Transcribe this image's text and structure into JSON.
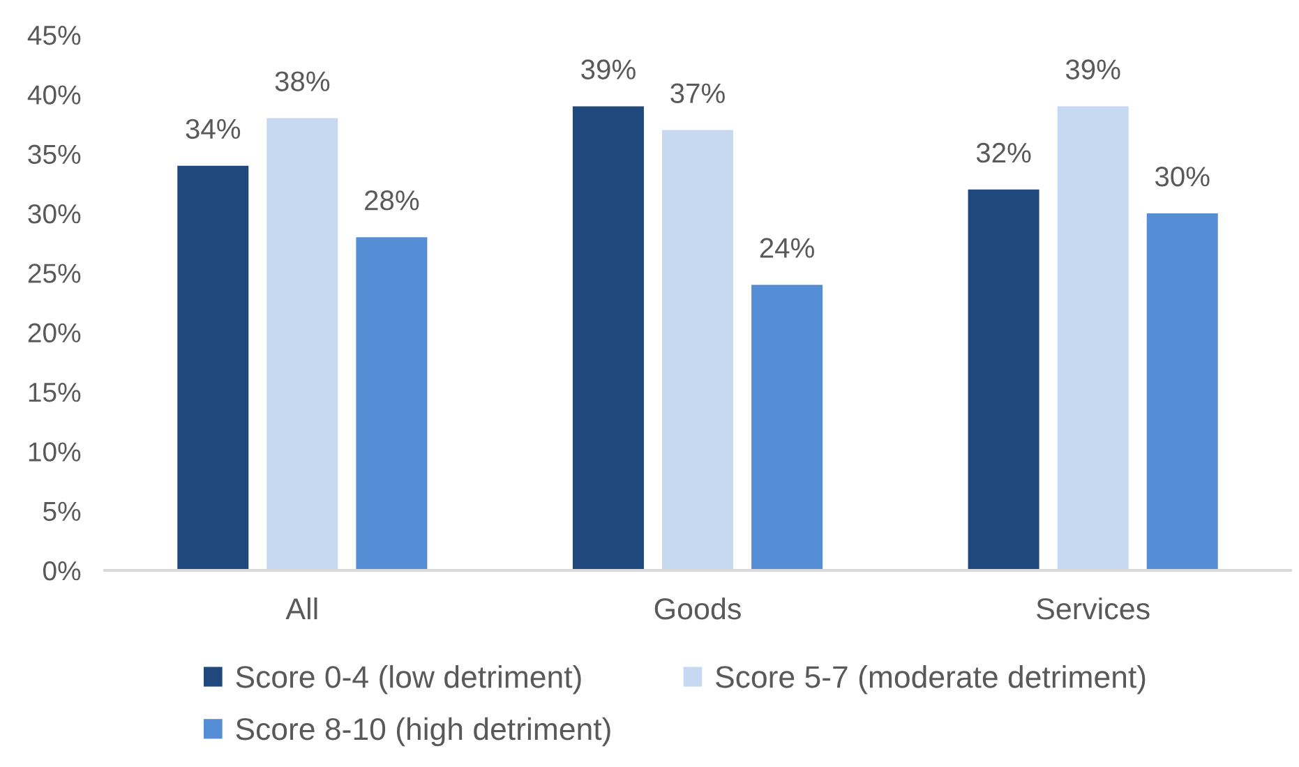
{
  "chart_data": {
    "type": "bar",
    "categories": [
      "All",
      "Goods",
      "Services"
    ],
    "series": [
      {
        "name": "Score 0-4 (low detriment)",
        "color": "#1f497d",
        "values": [
          34,
          39,
          32
        ],
        "value_labels": [
          "34%",
          "39%",
          "32%"
        ]
      },
      {
        "name": "Score 5-7 (moderate detriment)",
        "color": "#c6d9f1",
        "values": [
          38,
          37,
          39
        ],
        "value_labels": [
          "38%",
          "37%",
          "39%"
        ]
      },
      {
        "name": "Score 8-10 (high detriment)",
        "color": "#558ed5",
        "values": [
          28,
          24,
          30
        ],
        "value_labels": [
          "28%",
          "24%",
          "30%"
        ]
      }
    ],
    "ylim": [
      0,
      45
    ],
    "yticks": [
      {
        "value": 0,
        "label": "0%"
      },
      {
        "value": 5,
        "label": "5%"
      },
      {
        "value": 10,
        "label": "10%"
      },
      {
        "value": 15,
        "label": "15%"
      },
      {
        "value": 20,
        "label": "20%"
      },
      {
        "value": 25,
        "label": "25%"
      },
      {
        "value": 30,
        "label": "30%"
      },
      {
        "value": 35,
        "label": "35%"
      },
      {
        "value": 40,
        "label": "40%"
      },
      {
        "value": 45,
        "label": "45%"
      }
    ],
    "grid": false,
    "legend": "bottom"
  }
}
